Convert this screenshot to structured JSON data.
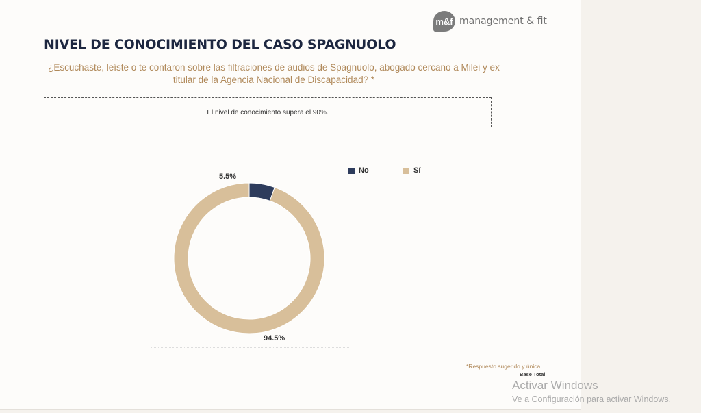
{
  "logo": {
    "mark": "m&f",
    "text": "management & fit"
  },
  "title": "NIVEL DE CONOCIMIENTO DEL CASO SPAGNUOLO",
  "question": "¿Escuchaste, leíste o te contaron sobre las filtraciones de audios de Spagnuolo, abogado cercano a Milei y ex titular de la Agencia Nacional de Discapacidad? *",
  "note": "El nivel de conocimiento supera el 90%.",
  "chart_data": {
    "type": "pie",
    "donut": true,
    "categories": [
      "No",
      "Sí"
    ],
    "values": [
      5.5,
      94.5
    ],
    "labels": [
      "5.5%",
      "94.5%"
    ],
    "colors": [
      "#2e3c5c",
      "#d8bf9a"
    ],
    "legend_placement": "top-right"
  },
  "footer": {
    "note": "*Respuesto sugerido y única",
    "base": "Base Total"
  },
  "watermark": {
    "title": "Activar Windows",
    "subtitle": "Ve a Configuración para activar Windows."
  }
}
